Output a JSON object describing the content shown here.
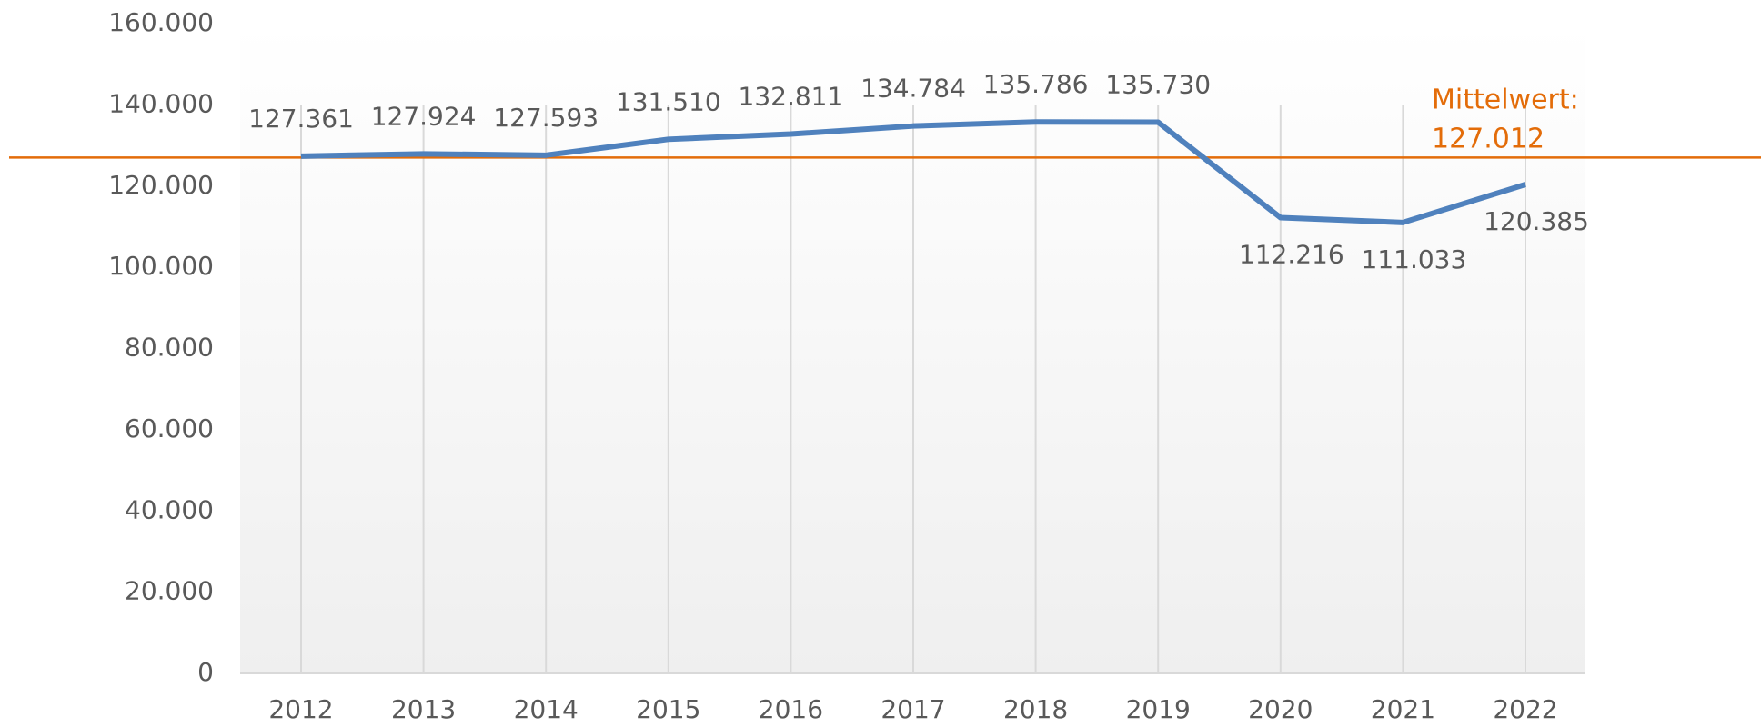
{
  "chart_data": {
    "type": "line",
    "categories": [
      "2012",
      "2013",
      "2014",
      "2015",
      "2016",
      "2017",
      "2018",
      "2019",
      "2020",
      "2021",
      "2022"
    ],
    "series": [
      {
        "color": "#4f81bd",
        "values": [
          127361,
          127924,
          127593,
          131510,
          132811,
          134784,
          135786,
          135730,
          112216,
          111033,
          120385
        ],
        "value_labels": [
          "127.361",
          "127.924",
          "127.593",
          "131.510",
          "132.811",
          "134.784",
          "135.786",
          "135.730",
          "112.216",
          "111.033",
          "120.385"
        ]
      }
    ],
    "ylim": [
      0,
      160000
    ],
    "yticks": [
      0,
      {
        "value": 20000,
        "label": "20.000"
      },
      {
        "value": 40000,
        "label": "40.000"
      },
      {
        "value": 60000,
        "label": "60.000"
      },
      {
        "value": 80000,
        "label": "80.000"
      },
      {
        "value": 100000,
        "label": "100.000"
      },
      {
        "value": 120000,
        "label": "120.000"
      },
      {
        "value": 140000,
        "label": "140.000"
      },
      {
        "value": 160000,
        "label": "160.000"
      }
    ],
    "mean": {
      "label": "Mittelwert:",
      "value": 127012,
      "value_label": "127.012",
      "color": "#e36c09"
    }
  }
}
